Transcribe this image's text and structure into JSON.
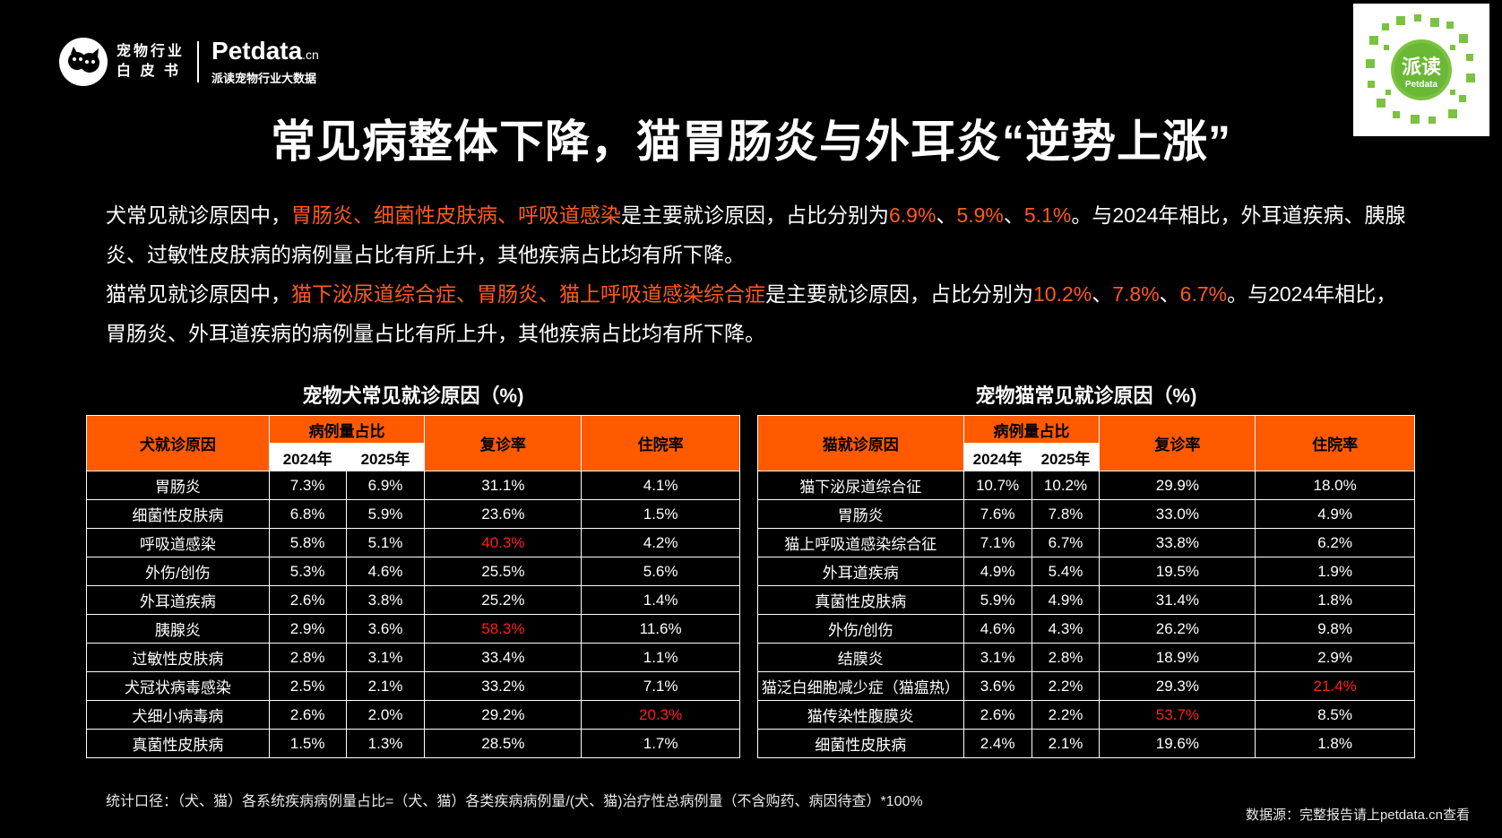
{
  "brand": {
    "line1": "宠物行业",
    "line2": "白 皮 书",
    "petdata_name": "Petdata",
    "petdata_suffix": ".cn",
    "petdata_sub": "派读宠物行业大数据"
  },
  "qr": {
    "label": "派读",
    "sub": "Petdata"
  },
  "title": "常见病整体下降，猫胃肠炎与外耳炎“逆势上涨”",
  "intro": {
    "dog": {
      "a": "犬常见就诊原因中，",
      "b": "胃肠炎、细菌性皮肤病、呼吸道感染",
      "c": "是主要就诊原因，占比分别为",
      "d": "6.9%",
      "e": "、",
      "f": "5.9%",
      "g": "、",
      "h": "5.1%",
      "i": "。与2024年相比，外耳道疾病、胰腺炎、过敏性皮肤病的病例量占比有所上升，其他疾病占比均有所下降。"
    },
    "cat": {
      "a": "猫常见就诊原因中，",
      "b": "猫下泌尿道综合症、胃肠炎、猫上呼吸道感染综合症",
      "c": "是主要就诊原因，占比分别为",
      "d": "10.2%",
      "e": "、",
      "f": "7.8%",
      "g": "、",
      "h": "6.7%",
      "i": "。与2024年相比，胃肠炎、外耳道疾病的病例量占比有所上升，其他疾病占比均有所下降。"
    }
  },
  "dog_table": {
    "title": "宠物犬常见就诊原因（%)",
    "headers": {
      "cause": "犬就诊原因",
      "ratio": "病例量占比",
      "y2024": "2024年",
      "y2025": "2025年",
      "revisit": "复诊率",
      "hosp": "住院率"
    },
    "rows": [
      [
        "胃肠炎",
        "7.3%",
        "6.9%",
        "31.1%",
        "4.1%"
      ],
      [
        "细菌性皮肤病",
        "6.8%",
        "5.9%",
        "23.6%",
        "1.5%"
      ],
      [
        "呼吸道感染",
        "5.8%",
        "5.1%",
        "40.3%",
        "4.2%"
      ],
      [
        "外伤/创伤",
        "5.3%",
        "4.6%",
        "25.5%",
        "5.6%"
      ],
      [
        "外耳道疾病",
        "2.6%",
        "3.8%",
        "25.2%",
        "1.4%"
      ],
      [
        "胰腺炎",
        "2.9%",
        "3.6%",
        "58.3%",
        "11.6%"
      ],
      [
        "过敏性皮肤病",
        "2.8%",
        "3.1%",
        "33.4%",
        "1.1%"
      ],
      [
        "犬冠状病毒感染",
        "2.5%",
        "2.1%",
        "33.2%",
        "7.1%"
      ],
      [
        "犬细小病毒病",
        "2.6%",
        "2.0%",
        "29.2%",
        "20.3%"
      ],
      [
        "真菌性皮肤病",
        "1.5%",
        "1.3%",
        "28.5%",
        "1.7%"
      ]
    ],
    "highlight_color": "#ff1f1f"
  },
  "cat_table": {
    "title": "宠物猫常见就诊原因（%)",
    "headers": {
      "cause": "猫就诊原因",
      "ratio": "病例量占比",
      "y2024": "2024年",
      "y2025": "2025年",
      "revisit": "复诊率",
      "hosp": "住院率"
    },
    "rows": [
      [
        "猫下泌尿道综合征",
        "10.7%",
        "10.2%",
        "29.9%",
        "18.0%"
      ],
      [
        "胃肠炎",
        "7.6%",
        "7.8%",
        "33.0%",
        "4.9%"
      ],
      [
        "猫上呼吸道感染综合征",
        "7.1%",
        "6.7%",
        "33.8%",
        "6.2%"
      ],
      [
        "外耳道疾病",
        "4.9%",
        "5.4%",
        "19.5%",
        "1.9%"
      ],
      [
        "真菌性皮肤病",
        "5.9%",
        "4.9%",
        "31.4%",
        "1.8%"
      ],
      [
        "外伤/创伤",
        "4.6%",
        "4.3%",
        "26.2%",
        "9.8%"
      ],
      [
        "结膜炎",
        "3.1%",
        "2.8%",
        "18.9%",
        "2.9%"
      ],
      [
        "猫泛白细胞减少症（猫瘟热）",
        "3.6%",
        "2.2%",
        "29.3%",
        "21.4%"
      ],
      [
        "猫传染性腹膜炎",
        "2.6%",
        "2.2%",
        "53.7%",
        "8.5%"
      ],
      [
        "细菌性皮肤病",
        "2.4%",
        "2.1%",
        "19.6%",
        "1.8%"
      ]
    ]
  },
  "footnote": "统计口径：（犬、猫）各系统疾病病例量占比=（犬、猫）各类疾病病例量/(犬、猫)治疗性总病例量（不含购药、病因待查）*100%",
  "source": "数据源：完整报告请上petdata.cn查看",
  "colors": {
    "accent": "#ff5a00",
    "highlight_text": "#ff5a1f",
    "alert": "#ff1f1f",
    "background": "#000000"
  }
}
